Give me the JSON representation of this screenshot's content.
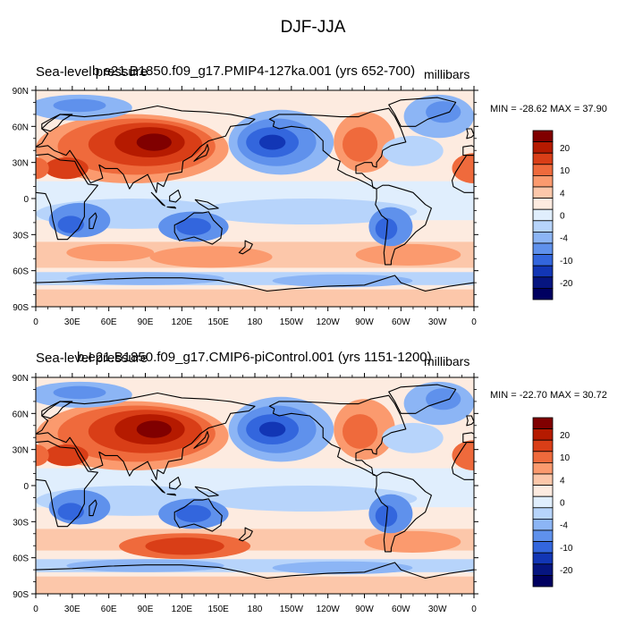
{
  "main_title": "DJF-JJA",
  "panels": [
    {
      "title": "Sea-level pressure",
      "title_overlap": "b.e21.B1850.f09_g17.PMIP4-127ka.001 (yrs 652-700)",
      "units": "millibars",
      "minmax": "MIN = -28.62 MAX =  37.90"
    },
    {
      "title": "Sea-level pressure",
      "title_overlap": "b.e21.B1850.f09_g17.CMIP6-piControl.001 (yrs 1151-1200)",
      "units": "millibars",
      "minmax": "MIN = -22.70 MAX =  30.72"
    }
  ],
  "chart_data": {
    "type": "heatmap",
    "projection": "cylindrical equidistant, centered 180",
    "lat_ticks": [
      "90N",
      "60N",
      "30N",
      "0",
      "30S",
      "60S",
      "90S"
    ],
    "lon_ticks": [
      "0",
      "30E",
      "60E",
      "90E",
      "120E",
      "150E",
      "180",
      "150W",
      "120W",
      "90W",
      "60W",
      "30W",
      "0"
    ],
    "colorbar_labels": [
      "20",
      "10",
      "4",
      "0",
      "-4",
      "-10",
      "-20"
    ],
    "colorbar_colors": [
      "#800000",
      "#b51a00",
      "#d93e17",
      "#ef6a3c",
      "#fb9a6e",
      "#fcc7aa",
      "#fdebe0",
      "#e0eefd",
      "#b7d4fb",
      "#8cb5f5",
      "#5f91ec",
      "#3366dd",
      "#1236b5",
      "#061580",
      "#000060"
    ]
  }
}
